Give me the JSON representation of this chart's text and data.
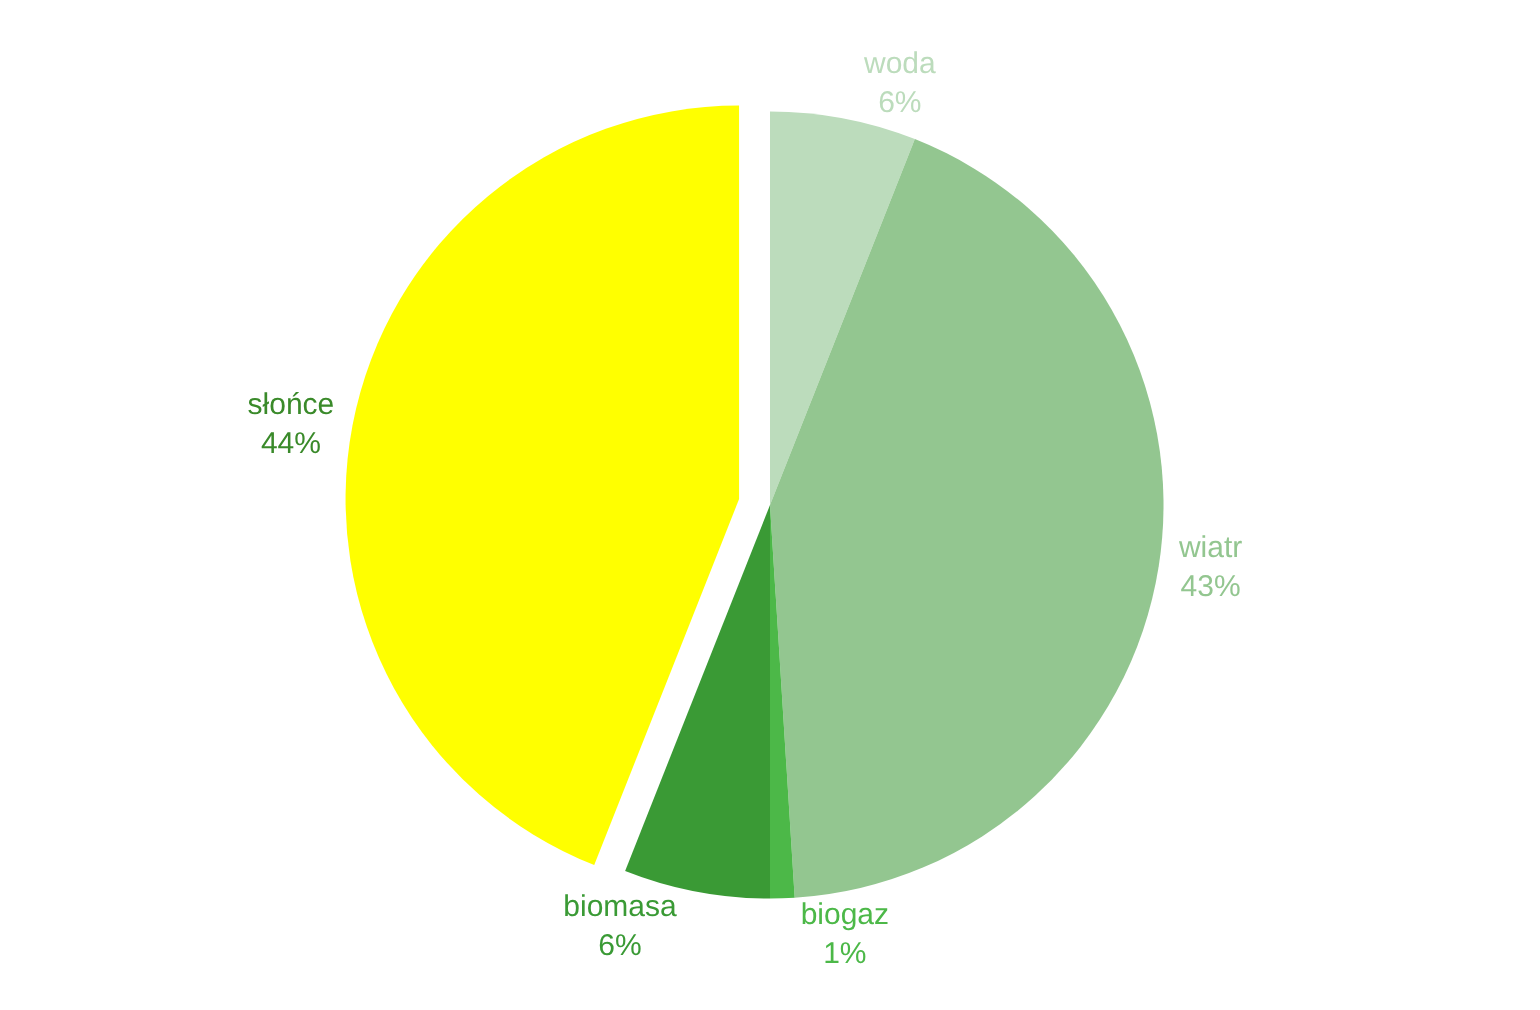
{
  "chart_data": {
    "type": "pie",
    "categories": [
      "woda",
      "wiatr",
      "biogaz",
      "biomasa",
      "słońce"
    ],
    "values": [
      6,
      43,
      1,
      6,
      44
    ],
    "value_labels": [
      "6%",
      "43%",
      "1%",
      "6%",
      "44%"
    ],
    "colors": [
      "#bcdcbc",
      "#93c690",
      "#4cb848",
      "#3a9a35",
      "#ffff00"
    ],
    "legend": false
  }
}
